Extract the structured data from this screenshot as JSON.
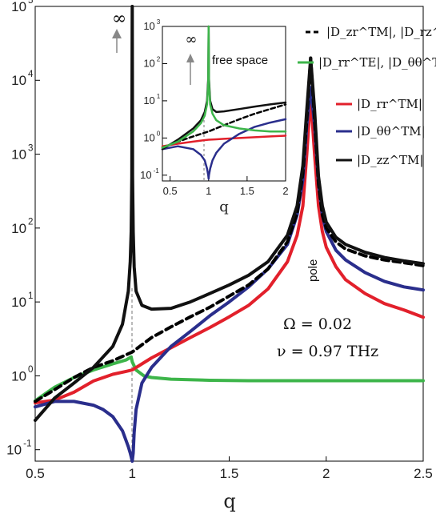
{
  "chart_data": {
    "type": "line",
    "xlabel": "q",
    "x_ticks": [
      "0.5",
      "1",
      "1.5",
      "2",
      "2.5"
    ],
    "xlim": [
      0.5,
      2.5
    ],
    "y_scale": "log",
    "ylim": [
      0.07,
      100000
    ],
    "y_ticks": [
      {
        "base": "10",
        "exp": "-1",
        "value": 0.1
      },
      {
        "base": "10",
        "exp": "0",
        "value": 1
      },
      {
        "base": "10",
        "exp": "1",
        "value": 10
      },
      {
        "base": "10",
        "exp": "2",
        "value": 100
      },
      {
        "base": "10",
        "exp": "3",
        "value": 1000
      },
      {
        "base": "10",
        "exp": "4",
        "value": 10000
      },
      {
        "base": "10",
        "exp": "5",
        "value": 100000
      }
    ],
    "annotations": {
      "infinity": "∞",
      "pole": "pole",
      "omega": "Ω = 0.02",
      "nu": "ν = 0.97 THz"
    },
    "legend": [
      {
        "text": "|D_zr^TM|, |D_rz^TM|",
        "color": "#000000",
        "dash": true
      },
      {
        "text": "|D_rr^TE|, |D_θθ^TE|",
        "color": "#3db54a",
        "dash": false
      },
      {
        "text": "|D_rr^TM|",
        "color": "#e2202b",
        "dash": false
      },
      {
        "text": "|D_θθ^TM|",
        "color": "#2a2e8c",
        "dash": false
      },
      {
        "text": "|D_zz^TM|",
        "color": "#111111",
        "dash": false
      }
    ],
    "series": [
      {
        "key": "zz_tm",
        "color": "#111111",
        "dash": false,
        "x": [
          0.5,
          0.6,
          0.7,
          0.8,
          0.9,
          0.95,
          0.98,
          0.99,
          0.995,
          0.998,
          1.0,
          1.002,
          1.005,
          1.01,
          1.02,
          1.05,
          1.1,
          1.2,
          1.3,
          1.4,
          1.5,
          1.6,
          1.7,
          1.8,
          1.85,
          1.88,
          1.9,
          1.92,
          1.94,
          1.96,
          1.98,
          2.0,
          2.05,
          2.1,
          2.2,
          2.3,
          2.4,
          2.5
        ],
        "y": [
          0.25,
          0.5,
          0.8,
          1.3,
          2.5,
          5,
          14,
          35,
          90,
          500,
          100000,
          500,
          90,
          30,
          14,
          9,
          8,
          8.2,
          10,
          13,
          17,
          23,
          35,
          80,
          200,
          700,
          4000,
          20000,
          4000,
          500,
          200,
          120,
          75,
          60,
          47,
          40,
          36,
          33
        ]
      },
      {
        "key": "zr_tm",
        "color": "#000000",
        "dash": true,
        "x": [
          0.5,
          0.6,
          0.7,
          0.8,
          0.9,
          1.0,
          1.1,
          1.2,
          1.3,
          1.4,
          1.5,
          1.6,
          1.7,
          1.8,
          1.85,
          1.88,
          1.9,
          1.92,
          1.94,
          1.96,
          1.98,
          2.0,
          2.05,
          2.1,
          2.2,
          2.3,
          2.4,
          2.5
        ],
        "y": [
          0.45,
          0.65,
          0.95,
          1.3,
          1.6,
          2.1,
          3.3,
          4.6,
          6.3,
          8.5,
          12,
          17,
          28,
          65,
          160,
          550,
          3000,
          20000,
          3000,
          400,
          150,
          100,
          65,
          52,
          42,
          37,
          34,
          31
        ]
      },
      {
        "key": "te",
        "color": "#3db54a",
        "dash": false,
        "x": [
          0.5,
          0.6,
          0.7,
          0.8,
          0.9,
          0.97,
          0.995,
          1.0,
          1.005,
          1.02,
          1.06,
          1.1,
          1.2,
          1.4,
          1.6,
          1.8,
          2.0,
          2.2,
          2.5
        ],
        "y": [
          0.46,
          0.7,
          0.95,
          1.2,
          1.45,
          1.65,
          1.8,
          1.55,
          1.45,
          1.2,
          1.0,
          0.95,
          0.9,
          0.87,
          0.86,
          0.86,
          0.86,
          0.86,
          0.86
        ]
      },
      {
        "key": "rr_tm",
        "color": "#e2202b",
        "dash": false,
        "x": [
          0.5,
          0.6,
          0.7,
          0.8,
          0.9,
          0.97,
          1.0,
          1.05,
          1.1,
          1.2,
          1.3,
          1.4,
          1.5,
          1.6,
          1.7,
          1.8,
          1.85,
          1.88,
          1.9,
          1.92,
          1.94,
          1.96,
          1.98,
          2.0,
          2.05,
          2.1,
          2.2,
          2.3,
          2.4,
          2.5
        ],
        "y": [
          0.43,
          0.47,
          0.6,
          0.85,
          1.05,
          1.15,
          1.2,
          1.45,
          1.75,
          2.4,
          3.3,
          4.5,
          6.3,
          9,
          15,
          35,
          80,
          200,
          1000,
          6000,
          1000,
          200,
          90,
          55,
          30,
          20,
          13,
          9.5,
          7.8,
          6.2
        ]
      },
      {
        "key": "thth_tm",
        "color": "#2a2e8c",
        "dash": false,
        "x": [
          0.5,
          0.6,
          0.7,
          0.8,
          0.85,
          0.9,
          0.95,
          0.98,
          0.99,
          0.995,
          1.0,
          1.005,
          1.01,
          1.02,
          1.05,
          1.1,
          1.2,
          1.3,
          1.4,
          1.5,
          1.6,
          1.7,
          1.8,
          1.85,
          1.88,
          1.9,
          1.92,
          1.94,
          1.96,
          1.98,
          2.0,
          2.05,
          2.1,
          2.2,
          2.3,
          2.4,
          2.5
        ],
        "y": [
          0.38,
          0.45,
          0.45,
          0.4,
          0.35,
          0.28,
          0.18,
          0.11,
          0.09,
          0.08,
          0.07,
          0.09,
          0.17,
          0.35,
          0.8,
          1.3,
          2.5,
          4,
          6.5,
          10,
          16,
          28,
          60,
          150,
          450,
          2500,
          8000,
          2500,
          400,
          150,
          90,
          50,
          37,
          25,
          19,
          16,
          14.5
        ]
      }
    ],
    "inset": {
      "label": "free space",
      "infinity": "∞",
      "xlabel": "q",
      "x_ticks": [
        "0.5",
        "1",
        "1.5",
        "2"
      ],
      "xlim": [
        0.4,
        2.0
      ],
      "y_scale": "log",
      "ylim": [
        0.07,
        1000
      ],
      "y_ticks": [
        {
          "base": "10",
          "exp": "-1",
          "value": 0.1
        },
        {
          "base": "10",
          "exp": "0",
          "value": 1
        },
        {
          "base": "10",
          "exp": "1",
          "value": 10
        },
        {
          "base": "10",
          "exp": "2",
          "value": 100
        },
        {
          "base": "10",
          "exp": "3",
          "value": 1000
        }
      ],
      "series": [
        {
          "key": "zz_tm",
          "color": "#111111",
          "dash": false,
          "x": [
            0.4,
            0.6,
            0.8,
            0.9,
            0.95,
            0.98,
            0.995,
            1.0,
            1.005,
            1.02,
            1.05,
            1.1,
            1.2,
            1.4,
            1.6,
            1.8,
            2.0
          ],
          "y": [
            0.5,
            0.9,
            1.8,
            3,
            5,
            10,
            40,
            1000,
            40,
            10,
            6,
            5,
            5.2,
            6,
            7,
            8,
            9
          ]
        },
        {
          "key": "zr_tm",
          "color": "#000000",
          "dash": true,
          "x": [
            0.4,
            0.6,
            0.8,
            1.0,
            1.2,
            1.4,
            1.6,
            1.8,
            2.0
          ],
          "y": [
            0.55,
            0.8,
            1.1,
            1.5,
            2.2,
            3.2,
            4.5,
            6,
            8
          ]
        },
        {
          "key": "te",
          "color": "#3db54a",
          "dash": false,
          "x": [
            0.4,
            0.6,
            0.8,
            0.9,
            0.95,
            0.98,
            0.995,
            1.0,
            1.005,
            1.02,
            1.05,
            1.1,
            1.2,
            1.4,
            1.6,
            1.8,
            2.0
          ],
          "y": [
            0.55,
            0.8,
            1.5,
            2.5,
            4,
            8,
            30,
            1000,
            30,
            8,
            4.5,
            3,
            2.2,
            1.8,
            1.6,
            1.5,
            1.5
          ]
        },
        {
          "key": "rr_tm",
          "color": "#e2202b",
          "dash": false,
          "x": [
            0.4,
            0.6,
            0.8,
            0.9,
            1.0,
            1.1,
            1.2,
            1.4,
            1.6,
            1.8,
            2.0
          ],
          "y": [
            0.6,
            0.7,
            0.8,
            0.85,
            0.9,
            0.92,
            0.95,
            1.0,
            1.05,
            1.1,
            1.15
          ]
        },
        {
          "key": "thth_tm",
          "color": "#2a2e8c",
          "dash": false,
          "x": [
            0.4,
            0.6,
            0.8,
            0.9,
            0.95,
            0.98,
            0.995,
            1.0,
            1.005,
            1.02,
            1.05,
            1.1,
            1.2,
            1.4,
            1.6,
            1.8,
            2.0
          ],
          "y": [
            0.5,
            0.6,
            0.5,
            0.35,
            0.25,
            0.15,
            0.1,
            0.08,
            0.1,
            0.15,
            0.25,
            0.4,
            0.7,
            1.3,
            2,
            2.6,
            3.2
          ]
        }
      ]
    }
  }
}
